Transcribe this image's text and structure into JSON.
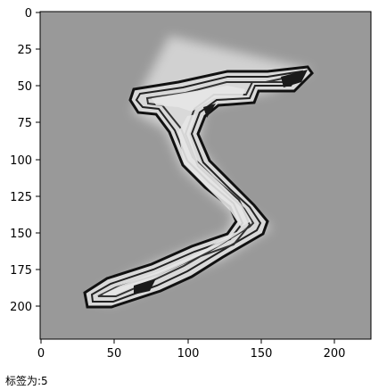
{
  "image": {
    "description_visible": "grayscale embossed digit 5",
    "background_color": "#999999",
    "dark_color": "#1a1a1a",
    "light_color": "#e6e6e6",
    "frame_color": "#000000"
  },
  "axes": {
    "x_ticks": [
      "0",
      "50",
      "100",
      "150",
      "200"
    ],
    "y_ticks": [
      "0",
      "25",
      "50",
      "75",
      "100",
      "125",
      "150",
      "175",
      "200"
    ]
  },
  "caption": "标签为:5"
}
